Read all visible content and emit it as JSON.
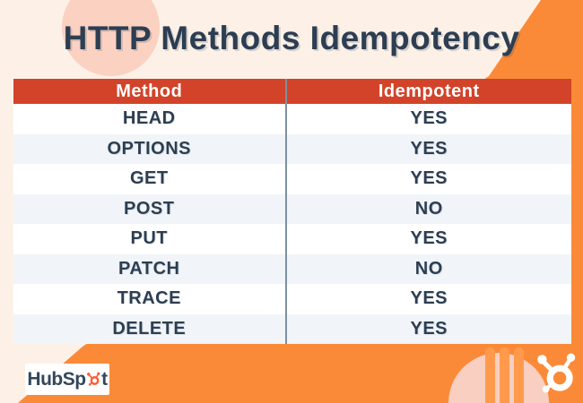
{
  "page": {
    "title": "HTTP Methods Idempotency"
  },
  "table": {
    "headers": [
      "Method",
      "Idempotent"
    ],
    "rows": [
      [
        "HEAD",
        "YES"
      ],
      [
        "OPTIONS",
        "YES"
      ],
      [
        "GET",
        "YES"
      ],
      [
        "POST",
        "NO"
      ],
      [
        "PUT",
        "YES"
      ],
      [
        "PATCH",
        "NO"
      ],
      [
        "TRACE",
        "YES"
      ],
      [
        "DELETE",
        "YES"
      ]
    ]
  },
  "logo": {
    "full_text": "HubSpot",
    "text_before_sprocket": "HubSp",
    "text_after_sprocket": "t"
  },
  "icons": {
    "sprocket": "hubspot-sprocket"
  },
  "colors": {
    "background_cream": "#fdf1e7",
    "accent_orange": "#fb8a38",
    "stripe_orange": "#ff9a4d",
    "header_red": "#d2432a",
    "row_white": "#ffffff",
    "row_blue": "#f1f5f9",
    "text_navy": "#2d3e52",
    "logo_navy": "#33475b",
    "divider_gray": "#7e909f",
    "pink_light": "#fbd1c2",
    "pink_semicircle": "#f8cfc0",
    "sprocket_orange": "#ff5c35",
    "white": "#ffffff"
  },
  "chart_data": {
    "type": "table",
    "title": "HTTP Methods Idempotency",
    "columns": [
      "Method",
      "Idempotent"
    ],
    "rows": [
      [
        "HEAD",
        "YES"
      ],
      [
        "OPTIONS",
        "YES"
      ],
      [
        "GET",
        "YES"
      ],
      [
        "POST",
        "NO"
      ],
      [
        "PUT",
        "YES"
      ],
      [
        "PATCH",
        "NO"
      ],
      [
        "TRACE",
        "YES"
      ],
      [
        "DELETE",
        "YES"
      ]
    ]
  }
}
